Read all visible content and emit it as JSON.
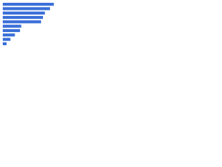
{
  "chart_data": {
    "type": "hbar",
    "values": [
      80,
      74,
      66,
      63,
      60,
      29,
      27,
      19,
      12,
      6
    ],
    "color": "#3a6fd8",
    "xlim": [
      0,
      100
    ]
  }
}
